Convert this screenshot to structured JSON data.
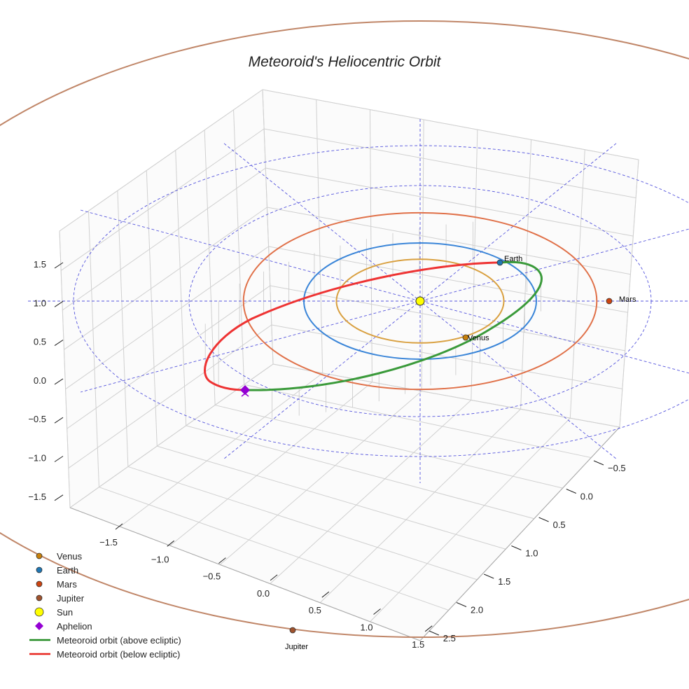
{
  "chart_data": {
    "type": "line",
    "title": "Meteoroid's Heliocentric Orbit",
    "projection": "3d",
    "x_ticks": [
      "−1.5",
      "−1.0",
      "−0.5",
      "0.0",
      "0.5",
      "1.0",
      "1.5"
    ],
    "y_ticks": [
      "−0.5",
      "0.0",
      "0.5",
      "1.0",
      "1.5",
      "2.0",
      "2.5"
    ],
    "z_ticks": [
      "1.5",
      "1.0",
      "0.5",
      "0.0",
      "−0.5",
      "−1.0",
      "−1.5"
    ],
    "orbits_au": [
      {
        "name": "Venus",
        "radius": 0.72,
        "color": "#d9a040"
      },
      {
        "name": "Earth",
        "radius": 1.0,
        "color": "#3a85d8"
      },
      {
        "name": "Mars",
        "radius": 1.52,
        "color": "#e07048"
      }
    ],
    "jupiter_orbit": {
      "radius": 5.2,
      "color": "#c08668"
    },
    "planet_labels": {
      "venus": "Venus",
      "earth": "Earth",
      "mars": "Mars",
      "jupiter": "Jupiter"
    },
    "legend": {
      "placement": "bottom-left",
      "items": [
        {
          "label": "Venus",
          "color": "#c8800a",
          "marker": "circle"
        },
        {
          "label": "Earth",
          "color": "#1f77b4",
          "marker": "circle"
        },
        {
          "label": "Mars",
          "color": "#cc4411",
          "marker": "circle"
        },
        {
          "label": "Jupiter",
          "color": "#a0522d",
          "marker": "circle"
        },
        {
          "label": "Sun",
          "color": "#ffff00",
          "marker": "circle-large"
        },
        {
          "label": "Aphelion",
          "color": "#9400d3",
          "marker": "diamond"
        },
        {
          "label": "Meteoroid orbit (above ecliptic)",
          "color": "#228b22",
          "marker": "line"
        },
        {
          "label": "Meteoroid orbit (below ecliptic)",
          "color": "#e8251f",
          "marker": "line"
        }
      ]
    },
    "colors": {
      "above": "#3a9a3a",
      "below": "#ee3333",
      "grid_dashed": "#5555dd"
    }
  }
}
